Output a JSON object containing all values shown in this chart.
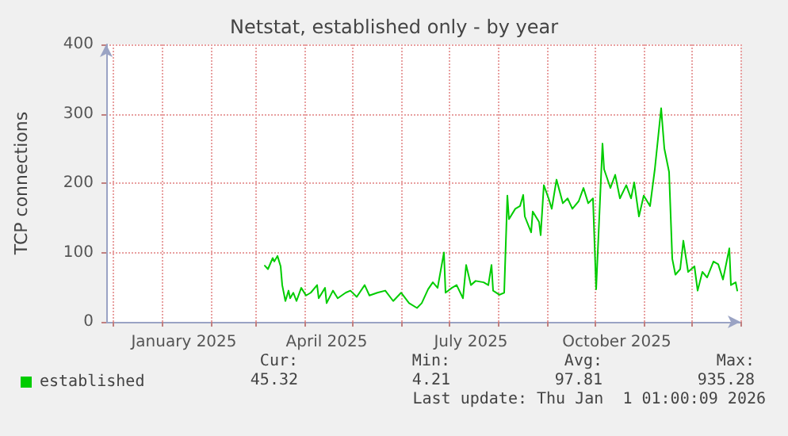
{
  "chart_data": {
    "type": "line",
    "title": "Netstat, established only - by year",
    "ylabel": "TCP connections",
    "xlim": [
      "2024-11-27",
      "2026-01-01"
    ],
    "xticks": [
      {
        "value": "2024-12-01",
        "label": null
      },
      {
        "value": "2025-01-01",
        "label": null
      },
      {
        "value": "2025-01-15",
        "label": "January 2025"
      },
      {
        "value": "2025-02-01",
        "label": null
      },
      {
        "value": "2025-03-01",
        "label": null
      },
      {
        "value": "2025-04-01",
        "label": null
      },
      {
        "value": "2025-04-15",
        "label": "April 2025"
      },
      {
        "value": "2025-05-01",
        "label": null
      },
      {
        "value": "2025-06-01",
        "label": null
      },
      {
        "value": "2025-07-01",
        "label": null
      },
      {
        "value": "2025-07-15",
        "label": "July 2025"
      },
      {
        "value": "2025-08-01",
        "label": null
      },
      {
        "value": "2025-09-01",
        "label": null
      },
      {
        "value": "2025-10-01",
        "label": null
      },
      {
        "value": "2025-10-15",
        "label": "October 2025"
      },
      {
        "value": "2025-11-01",
        "label": null
      },
      {
        "value": "2025-12-01",
        "label": null
      },
      {
        "value": "2026-01-01",
        "label": null
      }
    ],
    "ylim": [
      0,
      400
    ],
    "yticks": [
      0,
      100,
      200,
      300,
      400
    ],
    "grid": true,
    "legend": "bottom left",
    "marker": "none",
    "line_style": "solid",
    "x": [
      "2025-03-07",
      "2025-03-09",
      "2025-03-12",
      "2025-03-13",
      "2025-03-15",
      "2025-03-17",
      "2025-03-18",
      "2025-03-20",
      "2025-03-22",
      "2025-03-23",
      "2025-03-25",
      "2025-03-27",
      "2025-03-30",
      "2025-04-02",
      "2025-04-05",
      "2025-04-09",
      "2025-04-10",
      "2025-04-14",
      "2025-04-15",
      "2025-04-19",
      "2025-04-22",
      "2025-04-27",
      "2025-04-30",
      "2025-05-04",
      "2025-05-09",
      "2025-05-12",
      "2025-05-17",
      "2025-05-22",
      "2025-05-27",
      "2025-06-01",
      "2025-06-06",
      "2025-06-11",
      "2025-06-14",
      "2025-06-18",
      "2025-06-21",
      "2025-06-24",
      "2025-06-28",
      "2025-06-29",
      "2025-07-03",
      "2025-07-06",
      "2025-07-10",
      "2025-07-12",
      "2025-07-15",
      "2025-07-18",
      "2025-07-23",
      "2025-07-26",
      "2025-07-28",
      "2025-07-29",
      "2025-08-02",
      "2025-08-05",
      "2025-08-07",
      "2025-08-08",
      "2025-08-12",
      "2025-08-15",
      "2025-08-17",
      "2025-08-18",
      "2025-08-22",
      "2025-08-23",
      "2025-08-27",
      "2025-08-28",
      "2025-08-30",
      "2025-09-02",
      "2025-09-04",
      "2025-09-07",
      "2025-09-11",
      "2025-09-14",
      "2025-09-17",
      "2025-09-21",
      "2025-09-24",
      "2025-09-27",
      "2025-09-30",
      "2025-10-02",
      "2025-10-06",
      "2025-10-07",
      "2025-10-11",
      "2025-10-14",
      "2025-10-17",
      "2025-10-21",
      "2025-10-24",
      "2025-10-26",
      "2025-10-29",
      "2025-11-01",
      "2025-11-05",
      "2025-11-08",
      "2025-11-12",
      "2025-11-14",
      "2025-11-17",
      "2025-11-19",
      "2025-11-21",
      "2025-11-24",
      "2025-11-26",
      "2025-11-29",
      "2025-12-03",
      "2025-12-05",
      "2025-12-08",
      "2025-12-11",
      "2025-12-15",
      "2025-12-18",
      "2025-12-21",
      "2025-12-25",
      "2025-12-26",
      "2025-12-29",
      "2025-12-30"
    ],
    "series": [
      {
        "name": "established",
        "color": "#00cc00",
        "values": [
          81,
          76,
          92,
          87,
          95,
          80,
          53,
          30,
          45,
          34,
          42,
          30,
          49,
          38,
          42,
          53,
          34,
          49,
          27,
          45,
          34,
          42,
          45,
          36,
          53,
          38,
          42,
          45,
          30,
          42,
          27,
          20,
          27,
          47,
          57,
          49,
          100,
          42,
          49,
          53,
          34,
          82,
          53,
          59,
          57,
          53,
          82,
          45,
          39,
          42,
          182,
          148,
          163,
          167,
          183,
          152,
          129,
          159,
          144,
          125,
          197,
          178,
          163,
          205,
          171,
          178,
          163,
          174,
          193,
          171,
          178,
          47,
          257,
          220,
          193,
          212,
          178,
          197,
          178,
          201,
          152,
          182,
          167,
          220,
          308,
          250,
          216,
          91,
          68,
          76,
          117,
          72,
          80,
          45,
          72,
          64,
          87,
          83,
          61,
          106,
          53,
          57,
          45
        ]
      }
    ],
    "annotations": [
      "Cur:",
      "Min:",
      "Avg:",
      "Max:",
      "45.32",
      "4.21",
      "97.81",
      "935.28",
      "Last update: Thu Jan  1 01:00:09 2026"
    ]
  }
}
